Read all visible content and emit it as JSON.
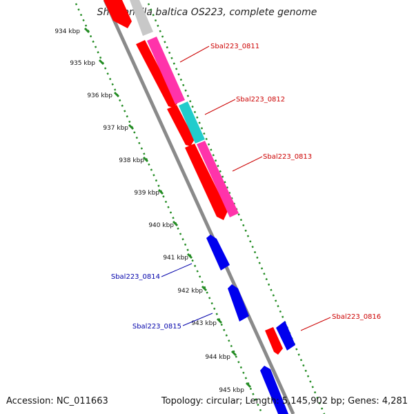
{
  "title": "Shewanella baltica OS223, complete genome",
  "footer": {
    "accession": "Accession: NC_011663",
    "summary": "Topology: circular; Length: 5,145,902 bp; Genes: 4,281"
  },
  "ticks": [
    "934 kbp",
    "935 kbp",
    "936 kbp",
    "937 kbp",
    "938 kbp",
    "939 kbp",
    "940 kbp",
    "941 kbp",
    "942 kbp",
    "943 kbp",
    "944 kbp",
    "945 kbp"
  ],
  "gene_labels": {
    "g0811": "Sbal223_0811",
    "g0812": "Sbal223_0812",
    "g0813": "Sbal223_0813",
    "g0814": "Sbal223_0814",
    "g0815": "Sbal223_0815",
    "g0816": "Sbal223_0816"
  },
  "colors": {
    "cds": "#ff0000",
    "gene_pink": "#ff33aa",
    "gene_cyan": "#22cccc",
    "gene_gray": "#c8c8c8",
    "minus_strand": "#0000ee",
    "backbone": "#8a8a8a",
    "tick_green": "#228b22",
    "label_red": "#cc0000",
    "label_blue": "#0000aa"
  }
}
